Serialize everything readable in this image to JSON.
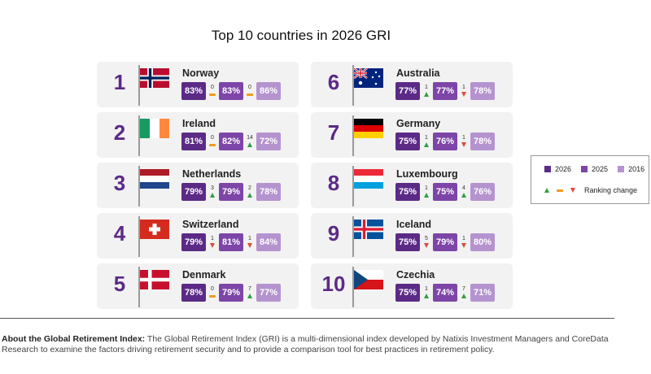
{
  "chart_data": {
    "type": "table",
    "title": "Top 10 countries in 2026 GRI",
    "legend": {
      "years": [
        "2026",
        "2025",
        "2016"
      ],
      "colors": [
        "#5b2a86",
        "#7e45a8",
        "#b593cf"
      ],
      "ranking_change_label": "Ranking change",
      "ranking_change_symbols": [
        "up-triangle",
        "no-change-dash",
        "down-triangle"
      ],
      "placement": "right"
    },
    "rows": [
      {
        "rank": "1",
        "country": "Norway",
        "flag": "norway-flag",
        "s2026": "83%",
        "chg1": "0",
        "dir1": "same",
        "s2025": "83%",
        "chg2": "0",
        "dir2": "same",
        "s2016": "86%"
      },
      {
        "rank": "2",
        "country": "Ireland",
        "flag": "ireland-flag",
        "s2026": "81%",
        "chg1": "0",
        "dir1": "same",
        "s2025": "82%",
        "chg2": "14",
        "dir2": "up",
        "s2016": "72%"
      },
      {
        "rank": "3",
        "country": "Netherlands",
        "flag": "netherlands-flag",
        "s2026": "79%",
        "chg1": "3",
        "dir1": "up",
        "s2025": "79%",
        "chg2": "2",
        "dir2": "up",
        "s2016": "78%"
      },
      {
        "rank": "4",
        "country": "Switzerland",
        "flag": "switzerland-flag",
        "s2026": "79%",
        "chg1": "1",
        "dir1": "down",
        "s2025": "81%",
        "chg2": "1",
        "dir2": "down",
        "s2016": "84%"
      },
      {
        "rank": "5",
        "country": "Denmark",
        "flag": "denmark-flag",
        "s2026": "78%",
        "chg1": "0",
        "dir1": "same",
        "s2025": "79%",
        "chg2": "7",
        "dir2": "up",
        "s2016": "77%"
      },
      {
        "rank": "6",
        "country": "Australia",
        "flag": "australia-flag",
        "s2026": "77%",
        "chg1": "1",
        "dir1": "up",
        "s2025": "77%",
        "chg2": "1",
        "dir2": "down",
        "s2016": "78%"
      },
      {
        "rank": "7",
        "country": "Germany",
        "flag": "germany-flag",
        "s2026": "75%",
        "chg1": "1",
        "dir1": "up",
        "s2025": "76%",
        "chg2": "1",
        "dir2": "down",
        "s2016": "78%"
      },
      {
        "rank": "8",
        "country": "Luxembourg",
        "flag": "luxembourg-flag",
        "s2026": "75%",
        "chg1": "1",
        "dir1": "up",
        "s2025": "75%",
        "chg2": "4",
        "dir2": "up",
        "s2016": "76%"
      },
      {
        "rank": "9",
        "country": "Iceland",
        "flag": "iceland-flag",
        "s2026": "75%",
        "chg1": "5",
        "dir1": "down",
        "s2025": "79%",
        "chg2": "1",
        "dir2": "down",
        "s2016": "80%"
      },
      {
        "rank": "10",
        "country": "Czechia",
        "flag": "czechia-flag",
        "s2026": "75%",
        "chg1": "1",
        "dir1": "up",
        "s2025": "74%",
        "chg2": "7",
        "dir2": "up",
        "s2016": "71%"
      }
    ]
  },
  "footnote": {
    "bold_prefix": "About the Global Retirement Index:",
    "text": " The Global Retirement Index (GRI) is a multi-dimensional index developed by Natixis Investment Managers and CoreData Research to examine the factors driving retirement security and to provide a comparison tool for best practices in retirement policy."
  }
}
